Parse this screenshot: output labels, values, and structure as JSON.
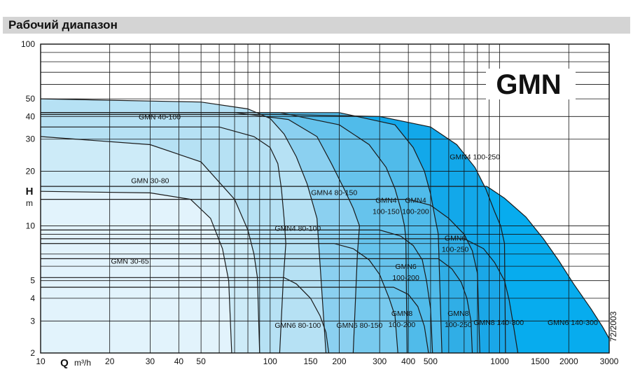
{
  "header": {
    "title": "Рабочий диапазон"
  },
  "badge": "GMN",
  "side_code": "72/2003",
  "colors": {
    "grid": "#111111",
    "curve": "#1a1a1a",
    "header_bg": "#d4d4d4"
  },
  "chart_data": {
    "type": "area",
    "title": "",
    "xlabel": "Q",
    "x_unit": "m³/h",
    "ylabel": "H",
    "y_unit": "m",
    "x_scale": "log",
    "y_scale": "log",
    "xlim": [
      10,
      3000
    ],
    "ylim": [
      2,
      100
    ],
    "x_ticks": [
      10,
      20,
      30,
      40,
      50,
      100,
      150,
      200,
      300,
      400,
      500,
      1000,
      1500,
      2000,
      3000
    ],
    "x_tick_labels": [
      "10",
      "20",
      "30",
      "40",
      "50",
      "100",
      "150",
      "200",
      "300",
      "400",
      "500",
      "1000",
      "1500",
      "2000",
      "3000"
    ],
    "y_ticks": [
      2,
      3,
      4,
      5,
      10,
      20,
      30,
      40,
      50,
      100
    ],
    "y_tick_labels": [
      "2",
      "3",
      "4",
      "5",
      "10",
      "20",
      "30",
      "40",
      "50",
      "100"
    ],
    "grid": true,
    "series": [
      {
        "name": "GMN 30-65",
        "fill": "#e2f3fc",
        "label_at": [
          24.5,
          6.2
        ],
        "boundary": [
          [
            10,
            15.5
          ],
          [
            30,
            15.2
          ],
          [
            45,
            14
          ],
          [
            55,
            11
          ],
          [
            62,
            7.5
          ],
          [
            66,
            5
          ],
          [
            68,
            2
          ]
        ]
      },
      {
        "name": "GMN 30-80",
        "fill": "#cdebf8",
        "label_at": [
          30,
          17.2
        ],
        "boundary": [
          [
            10,
            31
          ],
          [
            30,
            28
          ],
          [
            50,
            22.5
          ],
          [
            70,
            14
          ],
          [
            80,
            9.5
          ],
          [
            85,
            7
          ],
          [
            88,
            5.2
          ],
          [
            90,
            2
          ]
        ]
      },
      {
        "name": "GMN 40-100",
        "fill": "#b6e1f4",
        "label_at": [
          33,
          38.5
        ],
        "boundary": [
          [
            10,
            50
          ],
          [
            50,
            48
          ],
          [
            80,
            44
          ],
          [
            100,
            39
          ],
          [
            115,
            32
          ],
          [
            130,
            24
          ],
          [
            145,
            17
          ],
          [
            160,
            11
          ],
          [
            175,
            2
          ]
        ]
      },
      {
        "name": "GMN4 80-100",
        "fill": "#a2d9f2",
        "label_at": [
          132,
          9.4
        ],
        "boundary": [
          [
            60,
            35
          ],
          [
            85,
            31
          ],
          [
            100,
            27
          ],
          [
            108,
            22
          ],
          [
            112,
            16
          ],
          [
            115,
            11
          ],
          [
            117,
            8
          ],
          [
            114,
            5
          ],
          [
            110,
            2
          ]
        ]
      },
      {
        "name": "GMN4 80-150",
        "fill": "#8bd0f0",
        "label_at": [
          190,
          14.8
        ],
        "boundary": [
          [
            70,
            42
          ],
          [
            120,
            38.5
          ],
          [
            160,
            31
          ],
          [
            185,
            22
          ],
          [
            210,
            16
          ],
          [
            230,
            12.5
          ],
          [
            245,
            10
          ],
          [
            240,
            7
          ],
          [
            230,
            2
          ]
        ]
      },
      {
        "name": "GMN6 80-100",
        "fill": "#9ad6f2",
        "label_at": [
          132,
          2.75
        ],
        "boundary": [
          [
            115,
            5.2
          ],
          [
            130,
            4.8
          ],
          [
            150,
            4
          ],
          [
            165,
            3.2
          ],
          [
            175,
            2.6
          ],
          [
            180,
            2
          ]
        ]
      },
      {
        "name": "GMN6 80-150",
        "fill": "#78caee",
        "label_at": [
          245,
          2.75
        ],
        "boundary": [
          [
            190,
            8
          ],
          [
            230,
            7.5
          ],
          [
            270,
            6.5
          ],
          [
            300,
            5.4
          ],
          [
            330,
            4
          ],
          [
            350,
            3.2
          ],
          [
            360,
            2
          ]
        ]
      },
      {
        "name": "GMN4 100-150",
        "fill": "#66c3ec",
        "label_at": [
          320,
          13.4
        ],
        "boundary": [
          [
            110,
            42
          ],
          [
            200,
            36
          ],
          [
            270,
            28
          ],
          [
            320,
            21
          ],
          [
            350,
            16
          ],
          [
            370,
            12.5
          ],
          [
            385,
            10
          ],
          [
            390,
            8.5
          ],
          [
            395,
            2
          ]
        ]
      },
      {
        "name": "GMN4 100-200",
        "fill": "#50bbea",
        "label_at": [
          430,
          13.4
        ],
        "boundary": [
          [
            200,
            42
          ],
          [
            350,
            36
          ],
          [
            420,
            27
          ],
          [
            470,
            20
          ],
          [
            500,
            15
          ],
          [
            520,
            11.5
          ],
          [
            540,
            9
          ],
          [
            560,
            2
          ]
        ]
      },
      {
        "name": "GMN6 100-200",
        "fill": "#46b7e8",
        "label_at": [
          390,
          5.8
        ],
        "boundary": [
          [
            300,
            9.5
          ],
          [
            370,
            8.8
          ],
          [
            420,
            7.8
          ],
          [
            460,
            6.5
          ],
          [
            480,
            5
          ],
          [
            500,
            3.5
          ],
          [
            510,
            2
          ]
        ]
      },
      {
        "name": "GMN8 100-200",
        "fill": "#38b1e6",
        "label_at": [
          375,
          3.2
        ],
        "boundary": [
          [
            345,
            4.6
          ],
          [
            400,
            4.2
          ],
          [
            440,
            3.6
          ],
          [
            470,
            2.8
          ],
          [
            490,
            2
          ]
        ]
      },
      {
        "name": "GMN6 100-250",
        "fill": "#30aee6",
        "label_at": [
          640,
          8.3
        ],
        "boundary": [
          [
            400,
            14
          ],
          [
            500,
            13
          ],
          [
            600,
            11
          ],
          [
            700,
            9
          ],
          [
            760,
            7.3
          ],
          [
            800,
            5.5
          ],
          [
            820,
            2
          ]
        ]
      },
      {
        "name": "GMN8 100-250",
        "fill": "#26aae6",
        "label_at": [
          660,
          3.2
        ],
        "boundary": [
          [
            540,
            6.6
          ],
          [
            620,
            5.8
          ],
          [
            680,
            4.9
          ],
          [
            720,
            4
          ],
          [
            750,
            3
          ],
          [
            760,
            2
          ]
        ]
      },
      {
        "name": "GMN8 140-300",
        "fill": "#1aa7e8",
        "label_at": [
          990,
          2.85
        ],
        "boundary": [
          [
            700,
            8.5
          ],
          [
            850,
            7.5
          ],
          [
            950,
            6.3
          ],
          [
            1050,
            5
          ],
          [
            1100,
            3.9
          ],
          [
            1150,
            2.8
          ],
          [
            1200,
            2
          ]
        ]
      },
      {
        "name": "GMN4 100-250",
        "fill": "#12a8ea",
        "label_at": [
          780,
          23.2
        ],
        "boundary": [
          [
            110,
            41
          ],
          [
            300,
            40
          ],
          [
            500,
            35
          ],
          [
            650,
            28
          ],
          [
            780,
            21
          ],
          [
            870,
            16
          ],
          [
            950,
            12
          ],
          [
            1010,
            10
          ],
          [
            1050,
            8
          ],
          [
            1060,
            2
          ]
        ]
      },
      {
        "name": "GMN6 140-300",
        "fill": "#07acee",
        "label_at": [
          2080,
          2.85
        ],
        "boundary": [
          [
            880,
            16.5
          ],
          [
            1050,
            14.2
          ],
          [
            1300,
            11.2
          ],
          [
            1550,
            8.5
          ],
          [
            1800,
            6.5
          ],
          [
            2100,
            4.8
          ],
          [
            2500,
            3.5
          ],
          [
            2800,
            2.8
          ],
          [
            3000,
            2.4
          ]
        ]
      }
    ]
  }
}
